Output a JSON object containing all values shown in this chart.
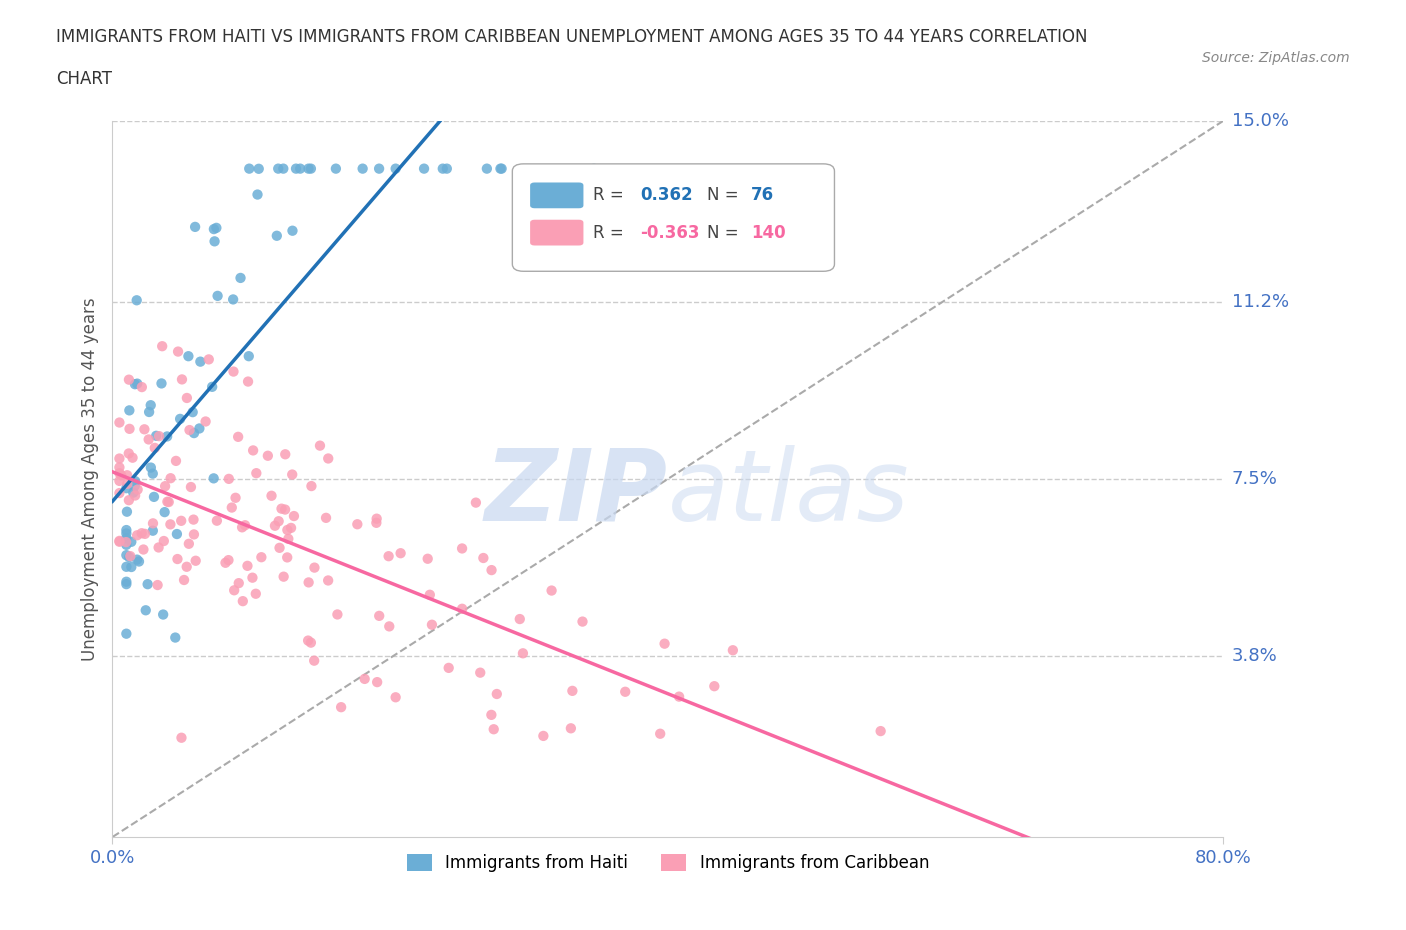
{
  "title_line1": "IMMIGRANTS FROM HAITI VS IMMIGRANTS FROM CARIBBEAN UNEMPLOYMENT AMONG AGES 35 TO 44 YEARS CORRELATION",
  "title_line2": "CHART",
  "source_text": "Source: ZipAtlas.com",
  "ylabel": "Unemployment Among Ages 35 to 44 years",
  "xmin": 0.0,
  "xmax": 0.8,
  "ymin": 0.0,
  "ymax": 0.15,
  "haiti_R": 0.362,
  "haiti_N": 76,
  "caribbean_R": -0.363,
  "caribbean_N": 140,
  "haiti_color": "#6baed6",
  "caribbean_color": "#fa9fb5",
  "haiti_trend_color": "#2171b5",
  "caribbean_trend_color": "#f768a1",
  "ref_line_color": "#aaaaaa",
  "tick_label_color": "#4472c4",
  "watermark_color": "#c8d8f0",
  "grid_color": "#cccccc"
}
